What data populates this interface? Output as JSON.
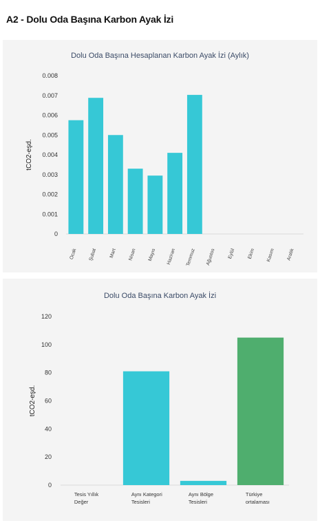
{
  "page": {
    "title": "A2 - Dolu Oda Başına Karbon Ayak İzi"
  },
  "chart_data": [
    {
      "type": "bar",
      "title": "Dolu Oda Başına Hesaplanan Karbon Ayak İzi (Aylık)",
      "ylabel": "tCO2-eşd.",
      "categories": [
        "Ocak",
        "Şubat",
        "Mart",
        "Nisan",
        "Mayıs",
        "Haziran",
        "Temmuz",
        "Ağustos",
        "Eylül",
        "Ekim",
        "Kasım",
        "Aralık"
      ],
      "values": [
        0.00575,
        0.00688,
        0.005,
        0.0033,
        0.00295,
        0.0041,
        0.00703,
        null,
        null,
        null,
        null,
        null
      ],
      "ylim": [
        0,
        0.008
      ],
      "yticks": [
        "0",
        "0.001",
        "0.002",
        "0.003",
        "0.004",
        "0.005",
        "0.006",
        "0.007",
        "0.008"
      ],
      "colors": [
        "#36c8d6"
      ],
      "grid": false
    },
    {
      "type": "bar",
      "title": "Dolu Oda Başına Karbon Ayak İzi",
      "ylabel": "tCO2-eşd.",
      "categories": [
        [
          "Tesis Yıllık",
          "Değer"
        ],
        [
          "Aynı Kategori",
          "Tesisleri"
        ],
        [
          "Aynı Bölge",
          "Tesisleri"
        ],
        [
          "Türkiye",
          "ortalaması"
        ]
      ],
      "values": [
        0,
        81,
        3,
        105
      ],
      "ylim": [
        0,
        120
      ],
      "yticks": [
        "0",
        "20",
        "40",
        "60",
        "80",
        "100",
        "120"
      ],
      "colors": [
        "#36c8d6",
        "#36c8d6",
        "#36c8d6",
        "#4fae6e"
      ],
      "grid": false
    }
  ]
}
